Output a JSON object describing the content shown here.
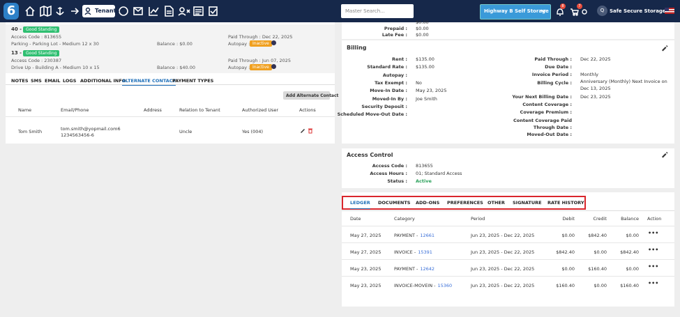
{
  "nav": {
    "logo": "6",
    "tenants": "Tenants",
    "search_placeholder": "Master Search...",
    "facility": "Highway B Self Storage",
    "badges": [
      "8",
      "7"
    ],
    "avatar": "Q",
    "account": "Safe Secure Storage"
  },
  "units": [
    {
      "number": "40 -",
      "status": "Good Standing",
      "access_code": "Access Code : 813655",
      "description": "Parking - Parking Lot - Medium 12 x 30",
      "balance": "Balance : $0.00",
      "paid_through": "Paid Through : Dec 22, 2025",
      "autopay": "Autopay :",
      "autopay_status": "Inactive"
    },
    {
      "number": "13 -",
      "status": "Good Standing",
      "access_code": "Access Code : 230387",
      "description": "Drive Up - Building A - Medium 10 x 15",
      "balance": "Balance : $40.00",
      "paid_through": "Paid Through : Jun 07, 2025",
      "autopay": "Autopay :",
      "autopay_status": "Inactive"
    }
  ],
  "tenant_tabs": {
    "items": [
      "NOTES",
      "SMS",
      "EMAIL",
      "LOGS",
      "ADDITIONAL INFO",
      "ALTERNATE CONTACT",
      "PAYMENT TYPES"
    ],
    "active": 5
  },
  "alternate_contact": {
    "button": "Add Alternate Contact",
    "columns": [
      "Name",
      "Email/Phone",
      "Address",
      "Relation to Tenant",
      "Authorized User",
      "Actions"
    ],
    "rows": [
      {
        "name": "Tom Smith",
        "email": "tom.smith@yopmail.com6",
        "phone": "1234563456-6",
        "relation": "Uncle",
        "authorized": "Yes (004)"
      }
    ]
  },
  "summary": {
    "clipped_value": "$0.00",
    "rows": [
      {
        "label": "Prepaid :",
        "value": "$0.00"
      },
      {
        "label": "Late Fee :",
        "value": "$0.00"
      }
    ]
  },
  "billing": {
    "title": "Billing",
    "left": [
      {
        "label": "Rent :",
        "value": "$135.00"
      },
      {
        "label": "Standard Rate :",
        "value": "$135.00"
      },
      {
        "label": "Autopay :"
      },
      {
        "label": "Tax Exempt :",
        "value": "No"
      },
      {
        "label": "Move-In Date :",
        "value": "May 23, 2025"
      },
      {
        "label": "Moved-In By :",
        "value": "Joe Smith"
      },
      {
        "label": "Security Deposit :"
      },
      {
        "label": "Scheduled Move-Out Date :"
      }
    ],
    "right": [
      {
        "label": "Paid Through :",
        "value": "Dec 22, 2025"
      },
      {
        "label": "Due Date :"
      },
      {
        "label": "Invoice Period :",
        "value": "Monthly"
      },
      {
        "label": "Billing Cycle :",
        "value": "Anniversary (Monthly) Next Invoice on Dec 13, 2025"
      },
      {
        "label": "Your Next Billing Date :",
        "value": "Dec 23, 2025"
      },
      {
        "label": "Content Coverage :"
      },
      {
        "label": "Coverage Premium :"
      },
      {
        "label": "Content Coverage Paid Through Date :"
      },
      {
        "label": "Moved-Out Date :"
      }
    ]
  },
  "access_control": {
    "title": "Access Control",
    "rows": [
      {
        "label": "Access Code :",
        "value": "813655"
      },
      {
        "label": "Access Hours :",
        "value": "01; Standard Access"
      },
      {
        "label": "Status :",
        "value": "Active"
      }
    ]
  },
  "ledger": {
    "tabs": [
      "LEDGER",
      "DOCUMENTS",
      "ADD-ONS",
      "PREFERENCES",
      "OTHER",
      "SIGNATURE",
      "RATE HISTORY"
    ],
    "active": 0,
    "columns": [
      "Date",
      "Category",
      "Period",
      "Debit",
      "Credit",
      "Balance",
      "Action"
    ],
    "action": "•••",
    "rows": [
      {
        "date": "May 27, 2025",
        "category": "PAYMENT -",
        "ref": "12661",
        "period": "Jun 23, 2025 - Dec 22, 2025",
        "debit": "$0.00",
        "credit": "$842.40",
        "balance": "$0.00"
      },
      {
        "date": "May 27, 2025",
        "category": "INVOICE -",
        "ref": "15391",
        "period": "Jun 23, 2025 - Dec 22, 2025",
        "debit": "$842.40",
        "credit": "$0.00",
        "balance": "$842.40"
      },
      {
        "date": "May 23, 2025",
        "category": "PAYMENT -",
        "ref": "12642",
        "period": "Jun 23, 2025 - Dec 22, 2025",
        "debit": "$0.00",
        "credit": "$160.40",
        "balance": "$0.00"
      },
      {
        "date": "May 23, 2025",
        "category": "INVOICE-MOVEIN -",
        "ref": "15360",
        "period": "Jun 23, 2025 - Dec 22, 2025",
        "debit": "$160.40",
        "credit": "$0.00",
        "balance": "$160.40"
      }
    ]
  }
}
